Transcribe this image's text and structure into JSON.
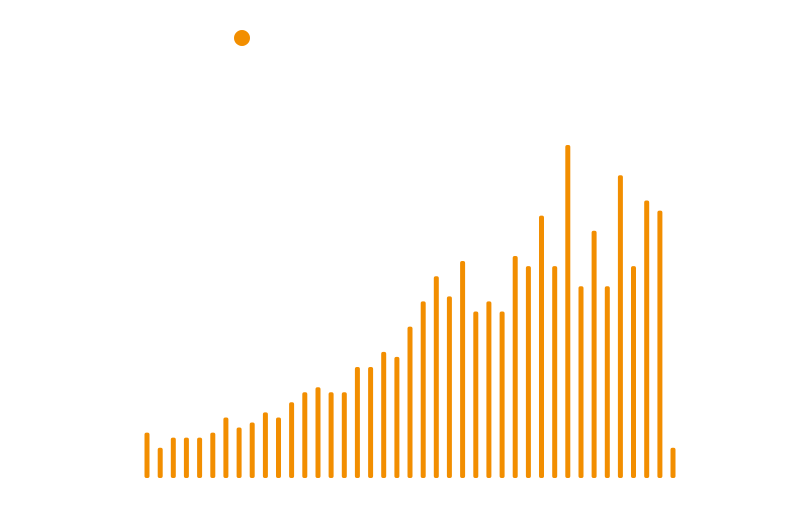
{
  "chart_data": {
    "type": "bar",
    "series_color": "#F28E00",
    "background": "#FFFFFF",
    "legend": {
      "marker": "dot",
      "placement": "top-left",
      "label": ""
    },
    "grid": false,
    "axes_visible": false,
    "x": [
      1,
      2,
      3,
      4,
      5,
      6,
      7,
      8,
      9,
      10,
      11,
      12,
      13,
      14,
      15,
      16,
      17,
      18,
      19,
      20,
      21,
      22,
      23,
      24,
      25,
      26,
      27,
      28,
      29,
      30,
      31,
      32,
      33,
      34,
      35,
      36,
      37,
      38,
      39,
      40,
      41
    ],
    "values": [
      9,
      6,
      8,
      8,
      8,
      9,
      12,
      10,
      11,
      13,
      12,
      15,
      17,
      18,
      17,
      17,
      22,
      22,
      25,
      24,
      30,
      35,
      40,
      36,
      43,
      33,
      35,
      33,
      44,
      42,
      52,
      42,
      66,
      38,
      49,
      38,
      60,
      42,
      55,
      53,
      6
    ],
    "ylim": [
      0,
      66
    ]
  }
}
